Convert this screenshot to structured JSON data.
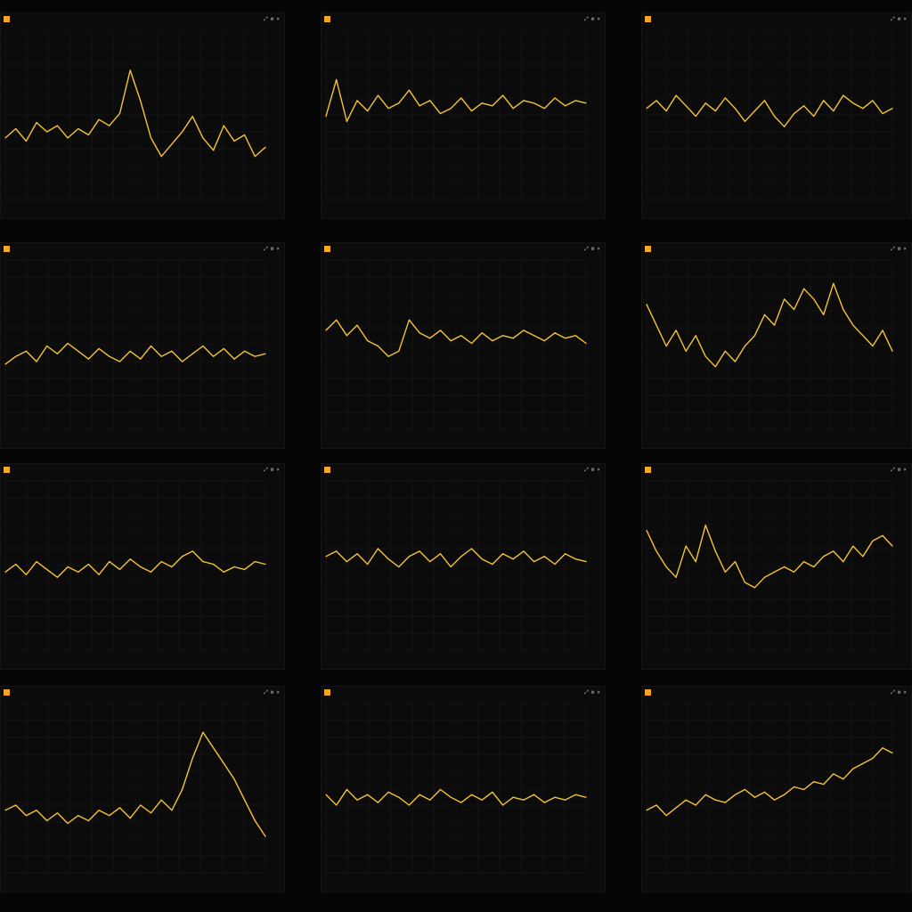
{
  "colors": {
    "background": "#050505",
    "panel": "#0b0b0b",
    "gridline": "#1c1c1c",
    "series": "#f4c430",
    "tick_text": "#7a7a7a",
    "volume": "#b8941f"
  },
  "icons": [
    "chart-icon",
    "expand-icon",
    "settings-icon",
    "close-icon"
  ],
  "panels": [
    {
      "title": "",
      "chart_type": "line"
    },
    {
      "title": "",
      "chart_type": "line"
    },
    {
      "title": "",
      "chart_type": "line"
    },
    {
      "title": "",
      "chart_type": "line"
    },
    {
      "title": "",
      "chart_type": "line"
    },
    {
      "title": "",
      "chart_type": "line"
    },
    {
      "title": "",
      "chart_type": "line"
    },
    {
      "title": "",
      "chart_type": "line"
    },
    {
      "title": "",
      "chart_type": "line"
    },
    {
      "title": "",
      "chart_type": "line"
    },
    {
      "title": "",
      "chart_type": "line"
    },
    {
      "title": "",
      "chart_type": "line"
    }
  ],
  "chart_data": [
    {
      "type": "line",
      "title": "",
      "x": [
        0,
        4,
        8,
        12,
        16,
        20,
        24,
        28,
        32,
        36,
        40,
        44,
        48,
        52,
        56,
        60,
        64,
        68,
        72,
        76,
        80,
        84,
        88,
        92,
        96,
        100
      ],
      "series": [
        {
          "values": [
            50,
            53,
            49,
            55,
            52,
            54,
            50,
            53,
            51,
            56,
            54,
            58,
            72,
            62,
            50,
            44,
            48,
            52,
            57,
            50,
            46,
            54,
            49,
            51,
            44,
            47
          ]
        }
      ],
      "ylim": [
        30,
        85
      ]
    },
    {
      "type": "line",
      "title": "",
      "x": [
        0,
        4,
        8,
        12,
        16,
        20,
        24,
        28,
        32,
        36,
        40,
        44,
        48,
        52,
        56,
        60,
        64,
        68,
        72,
        76,
        80,
        84,
        88,
        92,
        96,
        100
      ],
      "series": [
        {
          "values": [
            52,
            66,
            50,
            58,
            54,
            60,
            55,
            57,
            62,
            56,
            58,
            53,
            55,
            59,
            54,
            57,
            56,
            60,
            55,
            58,
            57,
            55,
            59,
            56,
            58,
            57
          ]
        }
      ],
      "ylim": [
        20,
        85
      ]
    },
    {
      "type": "line",
      "title": "",
      "x": [
        0,
        4,
        8,
        12,
        16,
        20,
        24,
        28,
        32,
        36,
        40,
        44,
        48,
        52,
        56,
        60,
        64,
        68,
        72,
        76,
        80,
        84,
        88,
        92,
        96,
        100
      ],
      "series": [
        {
          "values": [
            55,
            58,
            54,
            60,
            56,
            52,
            57,
            54,
            59,
            55,
            50,
            54,
            58,
            52,
            48,
            53,
            56,
            52,
            58,
            54,
            60,
            57,
            55,
            58,
            53,
            55
          ]
        }
      ],
      "ylim": [
        20,
        85
      ]
    },
    {
      "type": "line",
      "title": "",
      "x": [
        0,
        4,
        8,
        12,
        16,
        20,
        24,
        28,
        32,
        36,
        40,
        44,
        48,
        52,
        56,
        60,
        64,
        68,
        72,
        76,
        80,
        84,
        88,
        92,
        96,
        100
      ],
      "series": [
        {
          "values": [
            45,
            48,
            50,
            46,
            52,
            49,
            53,
            50,
            47,
            51,
            48,
            46,
            50,
            47,
            52,
            48,
            50,
            46,
            49,
            52,
            48,
            51,
            47,
            50,
            48,
            49
          ]
        }
      ],
      "ylim": [
        20,
        85
      ]
    },
    {
      "type": "line",
      "title": "",
      "x": [
        0,
        4,
        8,
        12,
        16,
        20,
        24,
        28,
        32,
        36,
        40,
        44,
        48,
        52,
        56,
        60,
        64,
        68,
        72,
        76,
        80,
        84,
        88,
        92,
        96,
        100
      ],
      "series": [
        {
          "values": [
            58,
            62,
            56,
            60,
            54,
            52,
            48,
            50,
            62,
            57,
            55,
            58,
            54,
            56,
            53,
            57,
            54,
            56,
            55,
            58,
            56,
            54,
            57,
            55,
            56,
            53
          ]
        }
      ],
      "ylim": [
        20,
        85
      ]
    },
    {
      "type": "line",
      "title": "",
      "x": [
        0,
        4,
        8,
        12,
        16,
        20,
        24,
        28,
        32,
        36,
        40,
        44,
        48,
        52,
        56,
        60,
        64,
        68,
        72,
        76,
        80,
        84,
        88,
        92,
        96,
        100
      ],
      "series": [
        {
          "values": [
            68,
            60,
            52,
            58,
            50,
            56,
            48,
            44,
            50,
            46,
            52,
            56,
            64,
            60,
            70,
            66,
            74,
            70,
            64,
            76,
            66,
            60,
            56,
            52,
            58,
            50
          ]
        }
      ],
      "ylim": [
        20,
        85
      ]
    },
    {
      "type": "line",
      "title": "",
      "x": [
        0,
        4,
        8,
        12,
        16,
        20,
        24,
        28,
        32,
        36,
        40,
        44,
        48,
        52,
        56,
        60,
        64,
        68,
        72,
        76,
        80,
        84,
        88,
        92,
        96,
        100
      ],
      "series": [
        {
          "values": [
            50,
            53,
            49,
            54,
            51,
            48,
            52,
            50,
            53,
            49,
            54,
            51,
            55,
            52,
            50,
            54,
            52,
            56,
            58,
            54,
            53,
            50,
            52,
            51,
            54,
            53
          ]
        }
      ],
      "ylim": [
        20,
        85
      ]
    },
    {
      "type": "line",
      "title": "",
      "x": [
        0,
        4,
        8,
        12,
        16,
        20,
        24,
        28,
        32,
        36,
        40,
        44,
        48,
        52,
        56,
        60,
        64,
        68,
        72,
        76,
        80,
        84,
        88,
        92,
        96,
        100
      ],
      "series": [
        {
          "values": [
            56,
            58,
            54,
            57,
            53,
            59,
            55,
            52,
            56,
            58,
            54,
            57,
            52,
            56,
            59,
            55,
            53,
            57,
            55,
            58,
            54,
            56,
            53,
            57,
            55,
            54
          ]
        }
      ],
      "ylim": [
        20,
        85
      ]
    },
    {
      "type": "line",
      "title": "",
      "x": [
        0,
        4,
        8,
        12,
        16,
        20,
        24,
        28,
        32,
        36,
        40,
        44,
        48,
        52,
        56,
        60,
        64,
        68,
        72,
        76,
        80,
        84,
        88,
        92,
        96,
        100
      ],
      "series": [
        {
          "values": [
            66,
            58,
            52,
            48,
            60,
            54,
            68,
            58,
            50,
            54,
            46,
            44,
            48,
            50,
            52,
            50,
            54,
            52,
            56,
            58,
            54,
            60,
            56,
            62,
            64,
            60
          ]
        }
      ],
      "ylim": [
        20,
        85
      ]
    },
    {
      "type": "line",
      "title": "",
      "x": [
        0,
        4,
        8,
        12,
        16,
        20,
        24,
        28,
        32,
        36,
        40,
        44,
        48,
        52,
        56,
        60,
        64,
        68,
        72,
        76,
        80,
        84,
        88,
        92,
        96,
        100
      ],
      "series": [
        {
          "values": [
            44,
            46,
            42,
            44,
            40,
            43,
            39,
            42,
            40,
            44,
            42,
            45,
            41,
            46,
            43,
            48,
            44,
            52,
            64,
            74,
            68,
            62,
            56,
            48,
            40,
            34
          ]
        }
      ],
      "ylim": [
        20,
        85
      ]
    },
    {
      "type": "line",
      "title": "",
      "x": [
        0,
        4,
        8,
        12,
        16,
        20,
        24,
        28,
        32,
        36,
        40,
        44,
        48,
        52,
        56,
        60,
        64,
        68,
        72,
        76,
        80,
        84,
        88,
        92,
        96,
        100
      ],
      "series": [
        {
          "values": [
            50,
            46,
            52,
            48,
            50,
            47,
            51,
            49,
            46,
            50,
            48,
            52,
            49,
            47,
            50,
            48,
            51,
            46,
            49,
            48,
            50,
            47,
            49,
            48,
            50,
            49
          ]
        }
      ],
      "ylim": [
        20,
        85
      ]
    },
    {
      "type": "line",
      "title": "",
      "x": [
        0,
        4,
        8,
        12,
        16,
        20,
        24,
        28,
        32,
        36,
        40,
        44,
        48,
        52,
        56,
        60,
        64,
        68,
        72,
        76,
        80,
        84,
        88,
        92,
        96,
        100
      ],
      "series": [
        {
          "values": [
            44,
            46,
            42,
            45,
            48,
            46,
            50,
            48,
            47,
            50,
            52,
            49,
            51,
            48,
            50,
            53,
            52,
            55,
            54,
            58,
            56,
            60,
            62,
            64,
            68,
            66
          ]
        }
      ],
      "ylim": [
        20,
        85
      ]
    }
  ]
}
